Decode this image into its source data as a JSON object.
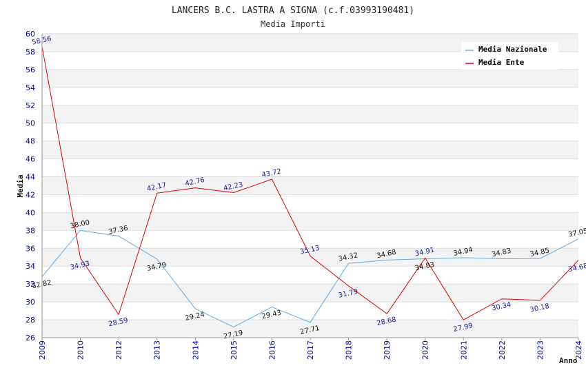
{
  "chart_data": {
    "type": "line",
    "title": "LANCERS B.C. LASTRA A SIGNA (c.f.03993190481)",
    "subtitle": "Media Importi",
    "xlabel": "Anno",
    "ylabel": "Media",
    "ylim": [
      26,
      60
    ],
    "yticks": [
      26,
      28,
      30,
      32,
      34,
      36,
      38,
      40,
      42,
      44,
      46,
      48,
      50,
      52,
      54,
      56,
      58,
      60
    ],
    "grid": true,
    "legend_position": "top-right",
    "categories": [
      "2009",
      "2010",
      "2012",
      "2013",
      "2014",
      "2015",
      "2016",
      "2017",
      "2018",
      "2019",
      "2020",
      "2021",
      "2022",
      "2023",
      "2024"
    ],
    "series": [
      {
        "name": "Media Nazionale",
        "color": "#66aadd",
        "values": [
          32.82,
          38.0,
          37.36,
          34.79,
          29.24,
          27.19,
          29.43,
          27.71,
          34.32,
          34.68,
          34.83,
          34.94,
          34.83,
          34.85,
          37.05
        ],
        "labels": [
          "32.82",
          "38.00",
          "37.36",
          "34.79",
          "29.24",
          "27.19",
          "29.43",
          "27.71",
          "34.32",
          "34.68",
          "34.83",
          "34.94",
          "34.83",
          "34.85",
          "37.05"
        ]
      },
      {
        "name": "Media Ente",
        "color": "#dd0000",
        "values": [
          58.56,
          34.93,
          28.59,
          42.17,
          42.76,
          42.23,
          43.72,
          35.13,
          31.79,
          28.68,
          34.91,
          27.99,
          30.34,
          30.18,
          34.68
        ],
        "labels": [
          "58.56",
          "34.93",
          "28.59",
          "42.17",
          "42.76",
          "42.23",
          "43.72",
          "35.13",
          "31.79",
          "28.68",
          "34.91",
          "27.99",
          "30.34",
          "30.18",
          "34.68"
        ]
      }
    ]
  }
}
